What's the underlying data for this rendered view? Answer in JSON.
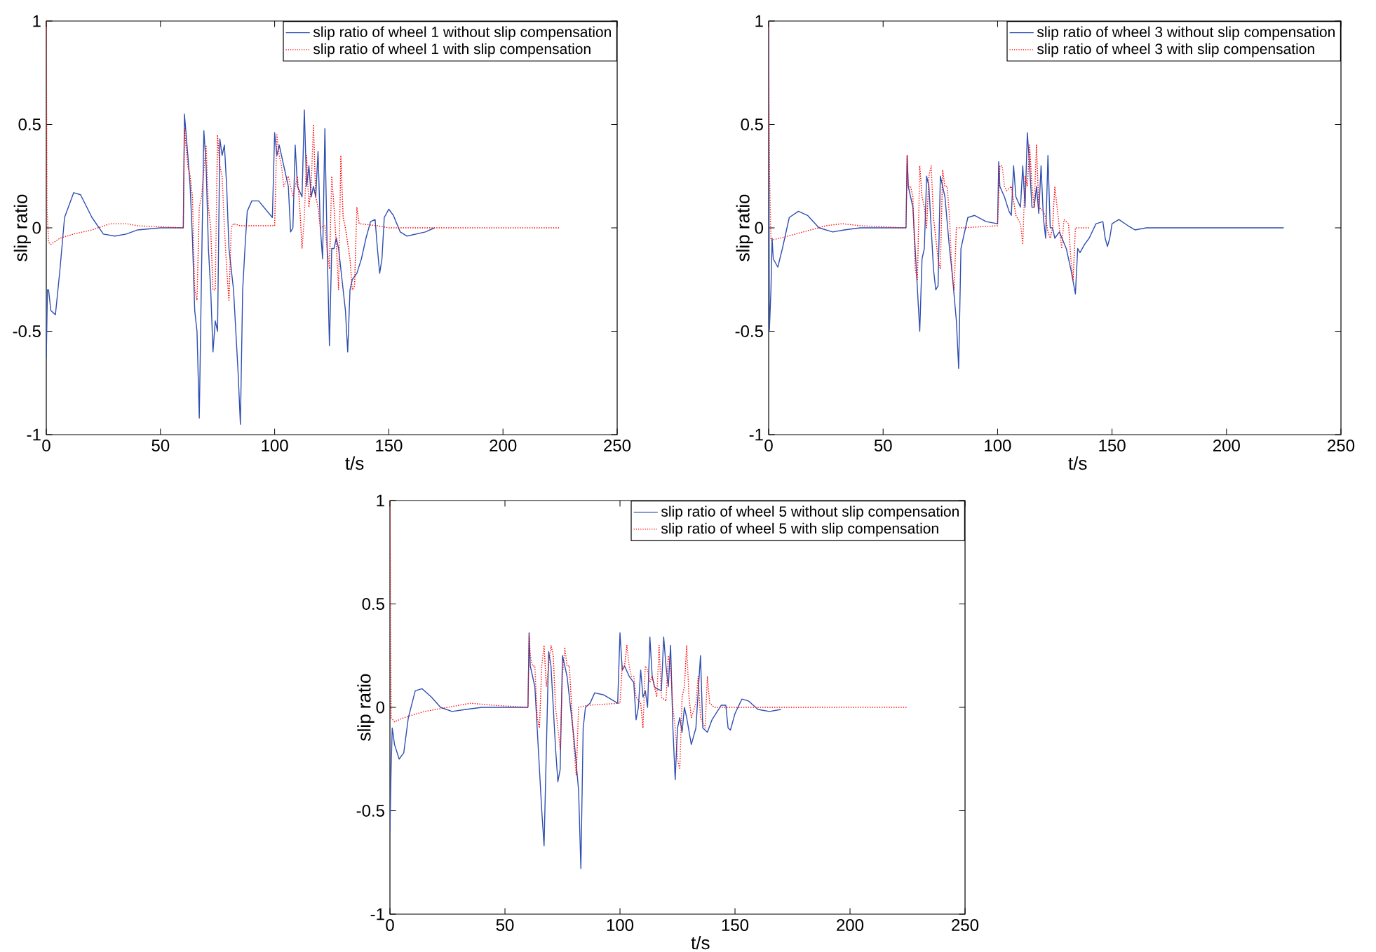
{
  "chart_data": [
    {
      "type": "line",
      "xlabel": "t/s",
      "ylabel": "slip ratio",
      "xlim": [
        0,
        250
      ],
      "ylim": [
        -1,
        1
      ],
      "xticks": [
        0,
        50,
        100,
        150,
        200,
        250
      ],
      "yticks": [
        -1,
        -0.5,
        0,
        0.5,
        1
      ],
      "grid": false,
      "legend": "top right",
      "marker": "none",
      "series": [
        {
          "name": "slip ratio of wheel 1 without slip compensation",
          "color": "#2f4fb0",
          "line_style": "solid",
          "x": [
            0,
            0.5,
            1,
            2,
            4,
            6,
            8,
            12,
            15,
            20,
            25,
            30,
            35,
            40,
            50,
            60,
            60.5,
            62,
            63,
            64,
            65,
            66,
            67,
            68,
            69,
            70,
            71,
            72,
            73,
            74,
            75,
            76,
            77,
            78,
            79,
            80,
            82,
            84,
            85,
            86,
            87,
            88,
            90,
            93,
            96,
            99,
            100,
            101,
            102,
            103,
            104,
            106,
            107,
            108,
            109,
            110,
            112,
            113,
            114,
            115,
            116,
            117,
            118,
            119,
            120,
            121,
            122,
            123,
            124,
            125,
            126,
            127,
            128,
            129,
            130,
            131,
            132,
            133,
            134,
            136,
            138,
            140,
            142,
            144,
            145,
            146,
            147,
            148,
            150,
            152,
            155,
            158,
            162,
            166,
            170
          ],
          "values": [
            -0.63,
            -0.3,
            -0.3,
            -0.4,
            -0.42,
            -0.2,
            0.05,
            0.17,
            0.16,
            0.05,
            -0.03,
            -0.04,
            -0.03,
            -0.01,
            0,
            0,
            0.55,
            0.35,
            0.2,
            -0.05,
            -0.4,
            -0.5,
            -0.92,
            -0.2,
            0.47,
            0.3,
            -0.1,
            -0.3,
            -0.6,
            -0.45,
            -0.5,
            0.43,
            0.35,
            0.4,
            0.2,
            -0.1,
            -0.3,
            -0.7,
            -0.95,
            -0.3,
            -0.1,
            0.08,
            0.13,
            0.13,
            0.09,
            0.05,
            0.46,
            0.35,
            0.4,
            0.35,
            0.3,
            0.2,
            -0.02,
            0,
            0.4,
            0.2,
            0.15,
            0.57,
            0.2,
            0.3,
            0.15,
            0.2,
            0.15,
            0.37,
            0,
            -0.15,
            0.48,
            -0.1,
            -0.57,
            -0.1,
            -0.1,
            -0.05,
            -0.1,
            -0.2,
            -0.3,
            -0.4,
            -0.6,
            -0.3,
            -0.25,
            -0.22,
            -0.15,
            -0.05,
            0.03,
            0.04,
            -0.1,
            -0.22,
            -0.15,
            0.05,
            0.09,
            0.06,
            -0.02,
            -0.04,
            -0.03,
            -0.02,
            0
          ]
        },
        {
          "name": "slip ratio of wheel 1 with slip compensation",
          "color": "#ff0000",
          "line_style": "dotted",
          "x": [
            0,
            0.3,
            1,
            2,
            6,
            12,
            20,
            28,
            35,
            40,
            60,
            60.5,
            62,
            63,
            64,
            65,
            66,
            67,
            68,
            70,
            71,
            72,
            73,
            74,
            75,
            76,
            77,
            78,
            79,
            80,
            81,
            82,
            85,
            100,
            101,
            102,
            103,
            104,
            106,
            108,
            110,
            111,
            112,
            113,
            114,
            115,
            116,
            117,
            118,
            119,
            120,
            122,
            123,
            124,
            125,
            126,
            127,
            128,
            129,
            130,
            131,
            133,
            134,
            135,
            136,
            137,
            145,
            150,
            225
          ],
          "values": [
            1,
            0.1,
            -0.07,
            -0.08,
            -0.05,
            -0.03,
            -0.01,
            0.02,
            0.02,
            0.01,
            0,
            0.48,
            0.3,
            0.25,
            0.15,
            -0.3,
            -0.35,
            0.1,
            0.15,
            0.4,
            0.1,
            0,
            -0.3,
            -0.3,
            0.45,
            0.3,
            0.25,
            0,
            -0.2,
            -0.35,
            0,
            0.02,
            0.01,
            0.01,
            0.45,
            0.35,
            0.3,
            0.2,
            0.25,
            0.15,
            0.25,
            0.1,
            -0.1,
            0.05,
            0.35,
            0.1,
            0.2,
            0.5,
            0.15,
            0.1,
            0,
            0.01,
            -0.1,
            -0.2,
            0.25,
            0.1,
            -0.08,
            -0.3,
            0.35,
            0.05,
            0,
            -0.15,
            -0.3,
            -0.28,
            0.1,
            0.02,
            0.01,
            0,
            0
          ]
        }
      ]
    },
    {
      "type": "line",
      "xlabel": "t/s",
      "ylabel": "slip ratio",
      "xlim": [
        0,
        250
      ],
      "ylim": [
        -1,
        1
      ],
      "xticks": [
        0,
        50,
        100,
        150,
        200,
        250
      ],
      "yticks": [
        -1,
        -0.5,
        0,
        0.5,
        1
      ],
      "grid": false,
      "legend": "top right",
      "marker": "none",
      "series": [
        {
          "name": "slip ratio of wheel 3 without slip compensation",
          "color": "#2f4fb0",
          "line_style": "solid",
          "x": [
            0,
            0.3,
            1,
            1.5,
            2,
            4,
            6,
            9,
            13,
            17,
            22,
            28,
            33,
            40,
            60,
            60.5,
            61,
            62,
            63,
            64,
            65,
            66,
            67,
            68,
            69,
            70,
            71,
            72,
            73,
            74,
            75,
            76,
            77,
            79,
            80,
            82,
            83,
            84,
            85,
            87,
            90,
            95,
            100,
            100.5,
            101,
            103,
            105,
            106,
            107,
            108,
            110,
            111,
            112,
            113,
            114,
            115,
            116,
            117,
            118,
            119,
            120,
            121,
            122,
            123,
            124,
            125,
            127,
            130,
            132,
            134,
            135,
            136,
            138,
            140,
            143,
            146,
            147,
            148,
            149,
            150,
            153,
            157,
            160,
            165,
            225
          ],
          "values": [
            1,
            -0.5,
            -0.3,
            -0.05,
            -0.15,
            -0.19,
            -0.1,
            0.05,
            0.08,
            0.06,
            0,
            -0.02,
            -0.01,
            0,
            0,
            0.35,
            0.2,
            0.15,
            0.1,
            -0.1,
            -0.3,
            -0.5,
            -0.15,
            -0.1,
            0.25,
            0.2,
            0,
            -0.2,
            -0.3,
            -0.28,
            0.25,
            0.2,
            0.15,
            -0.1,
            -0.2,
            -0.45,
            -0.68,
            -0.1,
            -0.05,
            0.05,
            0.06,
            0.03,
            0.02,
            0.32,
            0.2,
            0.15,
            0.08,
            0.06,
            0.3,
            0.15,
            0.1,
            0.3,
            0.1,
            0.46,
            0.3,
            0.1,
            0.1,
            0.2,
            0.07,
            0.3,
            0.05,
            -0.05,
            0.35,
            0,
            0,
            -0.05,
            -0.02,
            -0.1,
            -0.2,
            -0.32,
            -0.1,
            -0.12,
            -0.08,
            -0.05,
            0.02,
            0.03,
            -0.05,
            -0.09,
            -0.05,
            0.02,
            0.04,
            0.01,
            -0.01,
            0,
            0
          ]
        },
        {
          "name": "slip ratio of wheel 3 with slip compensation",
          "color": "#ff0000",
          "line_style": "dotted",
          "x": [
            0,
            0.3,
            1,
            5,
            15,
            25,
            32,
            40,
            60,
            60.5,
            61,
            62,
            63,
            64,
            65,
            66,
            67,
            68,
            69,
            70,
            71,
            72,
            73,
            74,
            75,
            76,
            77,
            78,
            79,
            80,
            81,
            82,
            85,
            100,
            101,
            102,
            103,
            104,
            106,
            108,
            110,
            111,
            112,
            113,
            114,
            115,
            116,
            117,
            118,
            120,
            121,
            122,
            123,
            124,
            125,
            126,
            127,
            128,
            129,
            131,
            132,
            133,
            134,
            140
          ],
          "values": [
            1,
            0.3,
            -0.06,
            -0.05,
            -0.02,
            0.01,
            0.02,
            0.01,
            0,
            0.35,
            0.2,
            0.2,
            0.15,
            -0.2,
            -0.25,
            0.3,
            0.15,
            0.1,
            0,
            0.25,
            0.3,
            0.05,
            -0.05,
            -0.15,
            -0.2,
            0.28,
            0.2,
            0.2,
            0.05,
            -0.2,
            -0.3,
            0,
            0,
            0.01,
            0.3,
            0.3,
            0.2,
            0.18,
            0.2,
            0.06,
            0.02,
            -0.08,
            0.25,
            0.2,
            0.4,
            0.2,
            0.1,
            0.4,
            0.1,
            0.08,
            0.05,
            -0.02,
            -0.05,
            0,
            0.2,
            0.1,
            0,
            -0.1,
            0.04,
            0.02,
            -0.15,
            -0.25,
            0,
            0
          ]
        }
      ]
    },
    {
      "type": "line",
      "xlabel": "t/s",
      "ylabel": "slip ratio",
      "xlim": [
        0,
        250
      ],
      "ylim": [
        -1,
        1
      ],
      "xticks": [
        0,
        50,
        100,
        150,
        200,
        250
      ],
      "yticks": [
        -1,
        -0.5,
        0,
        0.5,
        1
      ],
      "grid": false,
      "legend": "top right",
      "marker": "none",
      "series": [
        {
          "name": "slip ratio of wheel 5 without slip compensation",
          "color": "#2f4fb0",
          "line_style": "solid",
          "x": [
            0,
            0.5,
            1,
            2,
            4,
            6,
            8,
            11,
            14,
            18,
            22,
            27,
            33,
            40,
            60,
            60.5,
            61,
            62,
            63,
            64,
            65,
            66,
            67,
            68,
            69,
            70,
            71,
            72,
            73,
            74,
            75,
            76,
            77,
            79,
            80,
            82,
            83,
            84,
            85,
            87,
            89,
            93,
            99,
            100,
            101,
            102,
            104,
            106,
            107,
            108,
            109,
            110,
            111,
            112,
            113,
            114,
            115,
            116,
            118,
            119,
            120,
            121,
            122,
            123,
            124,
            125,
            126,
            127,
            128,
            129,
            131,
            133,
            135,
            136,
            138,
            140,
            144,
            146,
            147,
            148,
            150,
            153,
            156,
            160,
            165,
            170
          ],
          "values": [
            -0.6,
            -0.3,
            -0.1,
            -0.18,
            -0.25,
            -0.22,
            -0.05,
            0.08,
            0.09,
            0.05,
            0,
            -0.02,
            -0.01,
            0,
            0,
            0.36,
            0.2,
            0.15,
            0.1,
            -0.1,
            -0.3,
            -0.5,
            -0.67,
            -0.2,
            0.27,
            0.2,
            0,
            -0.2,
            -0.36,
            -0.3,
            0.25,
            0.2,
            0.15,
            -0.05,
            -0.15,
            -0.4,
            -0.78,
            -0.1,
            0,
            0.02,
            0.07,
            0.06,
            0.02,
            0.36,
            0.18,
            0.2,
            0.15,
            0.12,
            -0.06,
            0,
            0.18,
            0.05,
            0.08,
            0,
            0.34,
            0.15,
            0.1,
            0.09,
            0.08,
            0.34,
            0.2,
            0.1,
            0.3,
            -0.1,
            -0.35,
            -0.1,
            -0.05,
            -0.12,
            0,
            -0.05,
            -0.18,
            -0.1,
            0.25,
            -0.1,
            -0.12,
            -0.06,
            0.01,
            0.01,
            -0.1,
            -0.11,
            -0.03,
            0.04,
            0.03,
            -0.01,
            -0.02,
            -0.01
          ]
        },
        {
          "name": "slip ratio of wheel 5 with slip compensation",
          "color": "#ff0000",
          "line_style": "dotted",
          "x": [
            0,
            0.5,
            2,
            6,
            15,
            25,
            35,
            45,
            60,
            60.5,
            61,
            62,
            63,
            64,
            65,
            66,
            67,
            68,
            70,
            71,
            72,
            73,
            74,
            75,
            76,
            77,
            78,
            79,
            80,
            81,
            82,
            86,
            100,
            101,
            102,
            103,
            104,
            105,
            106,
            107,
            109,
            110,
            111,
            112,
            113,
            114,
            115,
            116,
            117,
            118,
            120,
            121,
            122,
            123,
            124,
            125,
            126,
            127,
            128,
            129,
            130,
            131,
            133,
            134,
            135,
            137,
            138,
            139,
            141,
            150,
            225
          ],
          "values": [
            1,
            -0.05,
            -0.07,
            -0.05,
            -0.02,
            0,
            0.02,
            0.01,
            0,
            0.36,
            0.25,
            0.2,
            0.2,
            -0.05,
            -0.1,
            0.2,
            0.3,
            0.1,
            0.3,
            0.25,
            0,
            -0.1,
            -0.2,
            0.15,
            0.29,
            0.2,
            0.2,
            0,
            -0.2,
            -0.33,
            0,
            0.01,
            0.02,
            0.2,
            0.2,
            0.3,
            0.2,
            0.15,
            0.15,
            0.05,
            0.02,
            -0.1,
            0.2,
            0.18,
            0.12,
            0.15,
            0.1,
            0.05,
            0.3,
            0.05,
            0.03,
            0.25,
            0.2,
            0,
            -0.1,
            -0.25,
            -0.3,
            0.05,
            0.1,
            0.3,
            0.05,
            -0.05,
            0.02,
            0.15,
            -0.05,
            -0.1,
            0.15,
            0.02,
            0,
            0,
            0
          ]
        }
      ]
    }
  ]
}
